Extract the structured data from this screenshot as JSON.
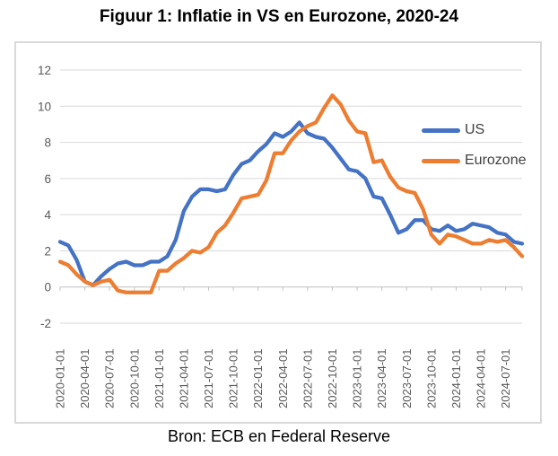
{
  "caption": "Bron: ECB en Federal Reserve",
  "colors": {
    "us_line": "#4472C4",
    "eurozone_line": "#ED7D31",
    "gridline": "#D9D9D9",
    "axis_line": "#BFBFBF",
    "tick_label": "#595959",
    "legend_text": "#404040",
    "chart_border": "#D9D9D9"
  },
  "chart_data": {
    "type": "line",
    "title": "Figuur 1: Inflatie in VS en Eurozone, 2020-24",
    "xlabel": "",
    "ylabel": "",
    "ylim": [
      -2,
      12
    ],
    "yticks": [
      -2,
      0,
      2,
      4,
      6,
      8,
      10,
      12
    ],
    "grid": true,
    "legend_position": "inside-right",
    "x_tick_labels": [
      "2020-01-01",
      "2020-04-01",
      "2020-07-01",
      "2020-10-01",
      "2021-01-01",
      "2021-04-01",
      "2021-07-01",
      "2021-10-01",
      "2022-01-01",
      "2022-04-01",
      "2022-07-01",
      "2022-10-01",
      "2023-01-01",
      "2023-04-01",
      "2023-07-01",
      "2023-10-01",
      "2024-01-01",
      "2024-04-01",
      "2024-07-01"
    ],
    "x": [
      "2020-01",
      "2020-02",
      "2020-03",
      "2020-04",
      "2020-05",
      "2020-06",
      "2020-07",
      "2020-08",
      "2020-09",
      "2020-10",
      "2020-11",
      "2020-12",
      "2021-01",
      "2021-02",
      "2021-03",
      "2021-04",
      "2021-05",
      "2021-06",
      "2021-07",
      "2021-08",
      "2021-09",
      "2021-10",
      "2021-11",
      "2021-12",
      "2022-01",
      "2022-02",
      "2022-03",
      "2022-04",
      "2022-05",
      "2022-06",
      "2022-07",
      "2022-08",
      "2022-09",
      "2022-10",
      "2022-11",
      "2022-12",
      "2023-01",
      "2023-02",
      "2023-03",
      "2023-04",
      "2023-05",
      "2023-06",
      "2023-07",
      "2023-08",
      "2023-09",
      "2023-10",
      "2023-11",
      "2023-12",
      "2024-01",
      "2024-02",
      "2024-03",
      "2024-04",
      "2024-05",
      "2024-06",
      "2024-07",
      "2024-08",
      "2024-09"
    ],
    "series": [
      {
        "name": "US",
        "color": "#4472C4",
        "values": [
          2.5,
          2.3,
          1.5,
          0.3,
          0.1,
          0.6,
          1.0,
          1.3,
          1.4,
          1.2,
          1.2,
          1.4,
          1.4,
          1.7,
          2.6,
          4.2,
          5.0,
          5.4,
          5.4,
          5.3,
          5.4,
          6.2,
          6.8,
          7.0,
          7.5,
          7.9,
          8.5,
          8.3,
          8.6,
          9.1,
          8.5,
          8.3,
          8.2,
          7.7,
          7.1,
          6.5,
          6.4,
          6.0,
          5.0,
          4.9,
          4.0,
          3.0,
          3.2,
          3.7,
          3.7,
          3.2,
          3.1,
          3.4,
          3.1,
          3.2,
          3.5,
          3.4,
          3.3,
          3.0,
          2.9,
          2.5,
          2.4
        ]
      },
      {
        "name": "Eurozone",
        "color": "#ED7D31",
        "values": [
          1.4,
          1.2,
          0.7,
          0.3,
          0.1,
          0.3,
          0.4,
          -0.2,
          -0.3,
          -0.3,
          -0.3,
          -0.3,
          0.9,
          0.9,
          1.3,
          1.6,
          2.0,
          1.9,
          2.2,
          3.0,
          3.4,
          4.1,
          4.9,
          5.0,
          5.1,
          5.9,
          7.4,
          7.4,
          8.1,
          8.6,
          8.9,
          9.1,
          9.9,
          10.6,
          10.1,
          9.2,
          8.6,
          8.5,
          6.9,
          7.0,
          6.1,
          5.5,
          5.3,
          5.2,
          4.3,
          2.9,
          2.4,
          2.9,
          2.8,
          2.6,
          2.4,
          2.4,
          2.6,
          2.5,
          2.6,
          2.2,
          1.7
        ]
      }
    ]
  }
}
